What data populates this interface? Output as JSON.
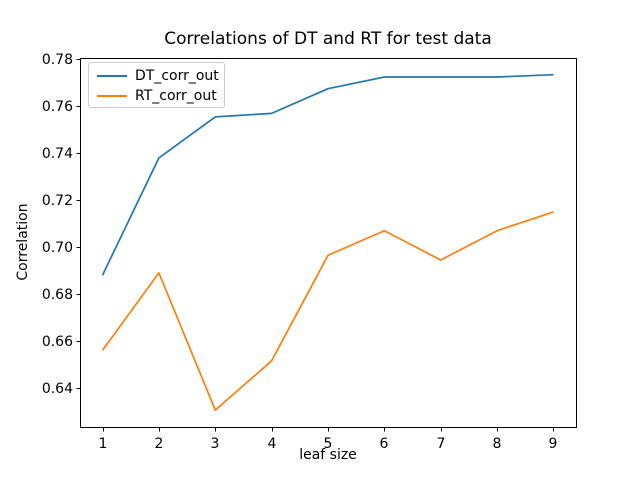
{
  "figure": {
    "background": "#ffffff",
    "spine_color": "#000000",
    "legend_border_color": "#cccccc"
  },
  "chart_data": {
    "type": "line",
    "title": "Correlations of DT and RT for test data",
    "xlabel": "leaf size",
    "ylabel": "Correlation",
    "x": [
      1,
      2,
      3,
      4,
      5,
      6,
      7,
      8,
      9
    ],
    "x_tick_labels": [
      "1",
      "2",
      "3",
      "4",
      "5",
      "6",
      "7",
      "8",
      "9"
    ],
    "y_ticks": [
      0.64,
      0.66,
      0.68,
      0.7,
      0.72,
      0.74,
      0.76,
      0.78
    ],
    "y_tick_labels": [
      "0.64",
      "0.66",
      "0.68",
      "0.70",
      "0.72",
      "0.74",
      "0.76",
      "0.78"
    ],
    "xlim": [
      0.6,
      9.4
    ],
    "ylim": [
      0.6233,
      0.7806
    ],
    "grid": false,
    "legend_position": "upper-left",
    "series": [
      {
        "name": "DT_corr_out",
        "color": "#1f77b4",
        "values": [
          0.688,
          0.738,
          0.7555,
          0.757,
          0.7675,
          0.7725,
          0.7725,
          0.7725,
          0.7735
        ]
      },
      {
        "name": "RT_corr_out",
        "color": "#ff7f0e",
        "values": [
          0.656,
          0.689,
          0.6305,
          0.6515,
          0.6965,
          0.707,
          0.6945,
          0.707,
          0.715
        ]
      }
    ]
  }
}
